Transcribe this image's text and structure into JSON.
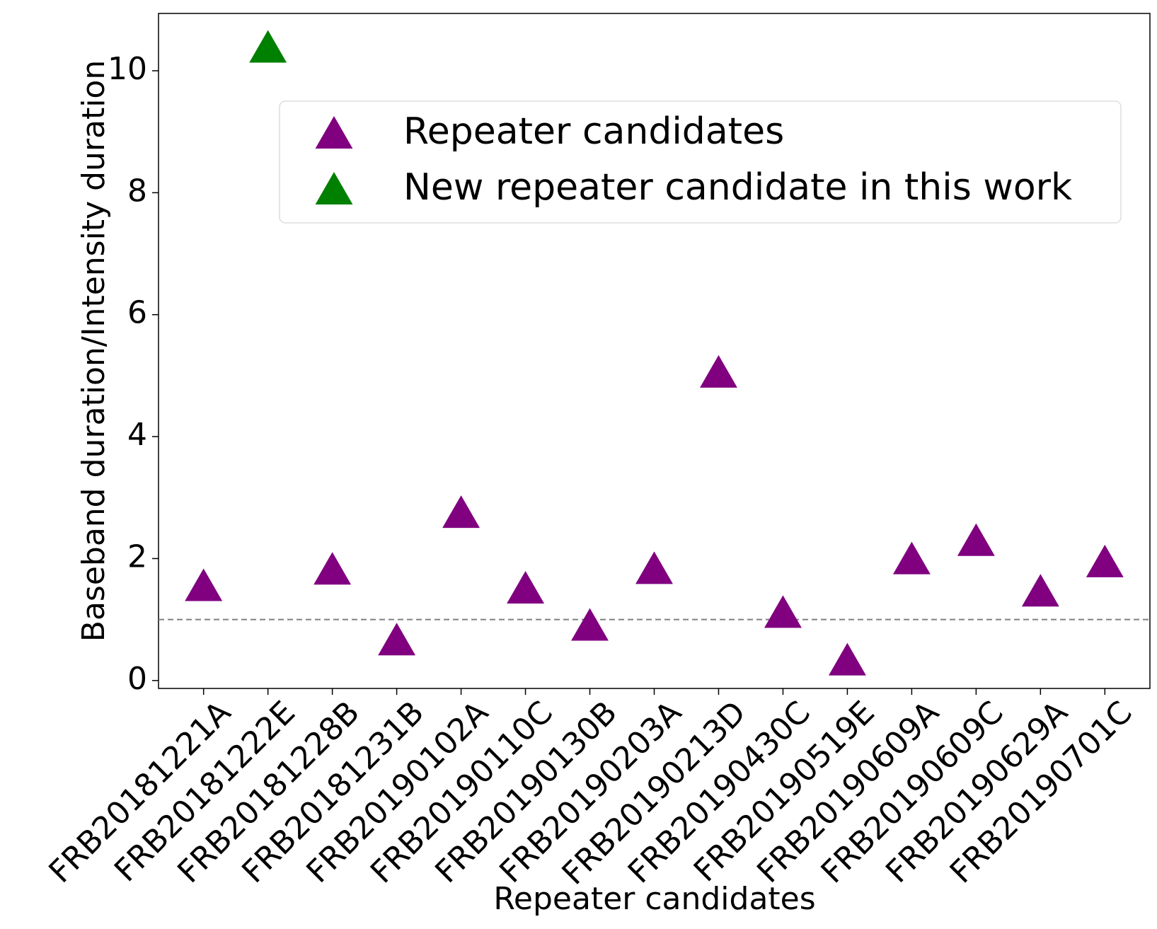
{
  "chart_data": {
    "type": "scatter",
    "x_label": "Repeater candidates",
    "y_label": "Baseband duration/Intensity duration",
    "categories": [
      "FRB20181221A",
      "FRB20181222E",
      "FRB20181228B",
      "FRB20181231B",
      "FRB20190102A",
      "FRB20190110C",
      "FRB20190130B",
      "FRB20190203A",
      "FRB20190213D",
      "FRB20190430C",
      "FRB20190519E",
      "FRB20190609A",
      "FRB20190609C",
      "FRB20190629A",
      "FRB20190701C"
    ],
    "series": [
      {
        "name": "Repeater candidates",
        "color": "#800080",
        "values": [
          1.57,
          null,
          1.84,
          0.68,
          2.77,
          1.53,
          0.92,
          1.85,
          5.07,
          1.13,
          0.35,
          2.01,
          2.31,
          1.48,
          1.96
        ]
      },
      {
        "name": "New repeater candidate in this work",
        "color": "#008000",
        "values": [
          null,
          10.4,
          null,
          null,
          null,
          null,
          null,
          null,
          null,
          null,
          null,
          null,
          null,
          null,
          null
        ]
      }
    ],
    "ylim": [
      -0.13,
      10.94
    ],
    "yticks": [
      0,
      2,
      4,
      6,
      8,
      10
    ],
    "hline": 1,
    "legend": "upper right"
  }
}
